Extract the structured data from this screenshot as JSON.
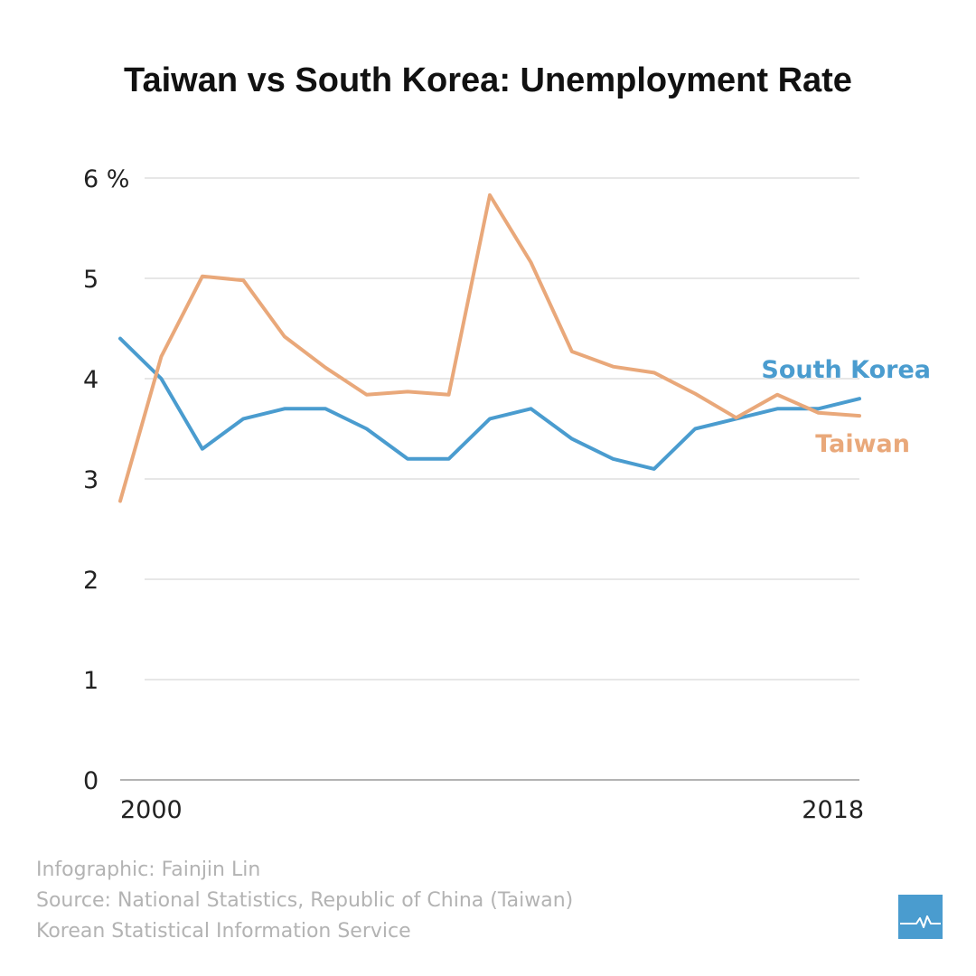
{
  "chart_data": {
    "type": "line",
    "title": "Taiwan vs South Korea: Unemployment Rate",
    "x": [
      2000,
      2001,
      2002,
      2003,
      2004,
      2005,
      2006,
      2007,
      2008,
      2009,
      2010,
      2011,
      2012,
      2013,
      2014,
      2015,
      2016,
      2017,
      2018
    ],
    "x_tick_labels": [
      {
        "x": 2000,
        "label": "2000"
      },
      {
        "x": 2018,
        "label": "2018"
      }
    ],
    "y_tick_labels": [
      {
        "y": 0,
        "label": "0"
      },
      {
        "y": 1,
        "label": "1"
      },
      {
        "y": 2,
        "label": "2"
      },
      {
        "y": 3,
        "label": "3"
      },
      {
        "y": 4,
        "label": "4"
      },
      {
        "y": 5,
        "label": "5"
      },
      {
        "y": 6,
        "label": "6 %"
      }
    ],
    "ylim": [
      0,
      6
    ],
    "xlim": [
      2000,
      2018
    ],
    "grid": true,
    "series": [
      {
        "name": "South Korea",
        "color": "#4a9ccf",
        "values": [
          4.4,
          4.0,
          3.3,
          3.6,
          3.7,
          3.7,
          3.5,
          3.2,
          3.2,
          3.6,
          3.7,
          3.4,
          3.2,
          3.1,
          3.5,
          3.6,
          3.7,
          3.7,
          3.8
        ]
      },
      {
        "name": "Taiwan",
        "color": "#e9a87a",
        "values": [
          2.78,
          4.22,
          5.02,
          4.98,
          4.42,
          4.11,
          3.84,
          3.87,
          3.84,
          5.83,
          5.16,
          4.27,
          4.12,
          4.06,
          3.85,
          3.61,
          3.84,
          3.66,
          3.63
        ]
      }
    ]
  },
  "credits": {
    "line1": "Infographic: Fainjin Lin",
    "line2": "Source: National Statistics, Republic of China (Taiwan)",
    "line3": "Korean Statistical Information Service"
  },
  "logo": {
    "icon": "pulse-chart-icon",
    "color": "#4a9ccf"
  }
}
